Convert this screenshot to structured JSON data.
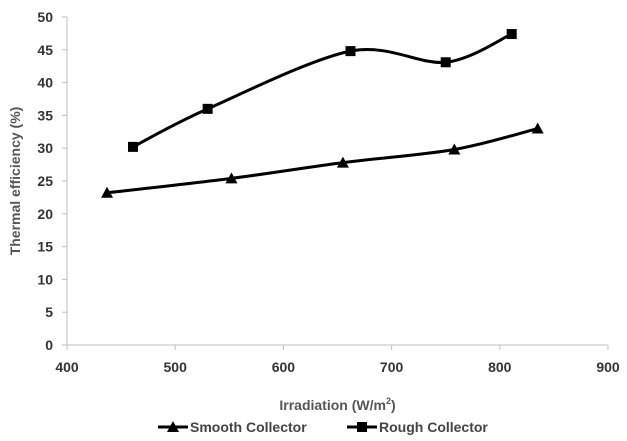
{
  "chart_data": {
    "type": "line",
    "title": "",
    "xlabel": "Irradiation  (W/m",
    "xlabel_sup": "2",
    "xlabel_close": ")",
    "ylabel": "Thermal efficiency (%)",
    "xlim": [
      400,
      900
    ],
    "ylim": [
      0,
      50
    ],
    "xticks": [
      400,
      500,
      600,
      700,
      800,
      900
    ],
    "yticks": [
      0,
      5,
      10,
      15,
      20,
      25,
      30,
      35,
      40,
      45,
      50
    ],
    "grid": false,
    "legend_position": "bottom",
    "series": [
      {
        "name": "Smooth Collector",
        "marker": "triangle",
        "color": "#000000",
        "x": [
          437,
          552,
          655,
          758,
          835
        ],
        "y": [
          23.2,
          25.4,
          27.8,
          29.8,
          33.0
        ]
      },
      {
        "name": "Rough Collector",
        "marker": "square",
        "color": "#000000",
        "x": [
          461,
          530,
          662,
          750,
          811
        ],
        "y": [
          30.2,
          36.0,
          44.8,
          43.1,
          47.4
        ]
      }
    ]
  }
}
